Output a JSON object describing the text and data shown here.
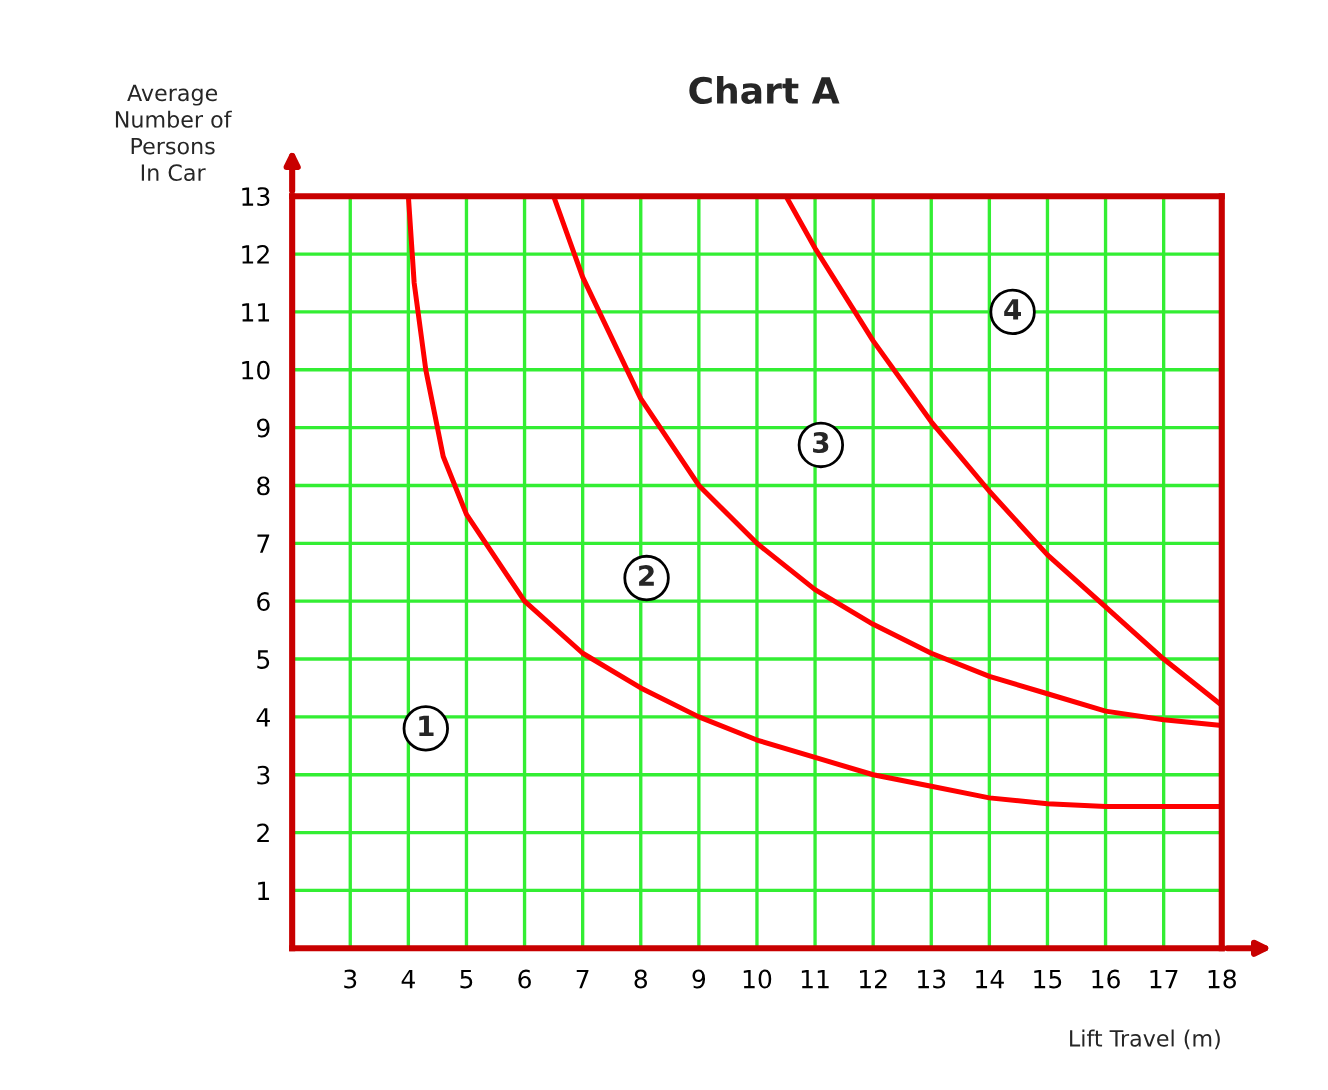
{
  "chart_data": {
    "type": "line",
    "title": "Chart A",
    "xlabel": "Lift Travel (m)",
    "ylabel": "Average\nNumber of\nPersons\nIn Car",
    "xlim": [
      2,
      18
    ],
    "ylim": [
      0,
      13
    ],
    "xticks": [
      3,
      4,
      5,
      6,
      7,
      8,
      9,
      10,
      11,
      12,
      13,
      14,
      15,
      16,
      17,
      18
    ],
    "yticks": [
      1,
      2,
      3,
      4,
      5,
      6,
      7,
      8,
      9,
      10,
      11,
      12,
      13
    ],
    "grid": true,
    "marker": "none",
    "line_style": "solid",
    "series": [
      {
        "color": "#ff0000",
        "x": [
          4,
          4.1,
          4.3,
          4.6,
          5,
          6,
          7,
          8,
          9,
          10,
          11,
          12,
          13,
          14,
          15,
          16,
          17,
          18
        ],
        "values": [
          13,
          11.5,
          10,
          8.5,
          7.5,
          6,
          5.1,
          4.5,
          4.0,
          3.6,
          3.3,
          3.0,
          2.8,
          2.6,
          2.5,
          2.45,
          2.45,
          2.45
        ]
      },
      {
        "color": "#ff0000",
        "x": [
          6.5,
          7,
          8,
          9,
          10,
          11,
          12,
          13,
          14,
          15,
          16,
          17,
          18
        ],
        "values": [
          13,
          11.6,
          9.5,
          8.0,
          7.0,
          6.2,
          5.6,
          5.1,
          4.7,
          4.4,
          4.1,
          3.95,
          3.85
        ]
      },
      {
        "color": "#ff0000",
        "x": [
          10.5,
          11,
          12,
          13,
          14,
          15,
          16,
          17,
          18
        ],
        "values": [
          13,
          12.1,
          10.5,
          9.1,
          7.9,
          6.8,
          5.9,
          5.0,
          4.2
        ]
      }
    ],
    "annotations": [
      {
        "text": "1",
        "x": 4.3,
        "y": 3.8
      },
      {
        "text": "2",
        "x": 8.1,
        "y": 6.4
      },
      {
        "text": "3",
        "x": 11.1,
        "y": 8.7
      },
      {
        "text": "4",
        "x": 14.4,
        "y": 11
      }
    ]
  }
}
